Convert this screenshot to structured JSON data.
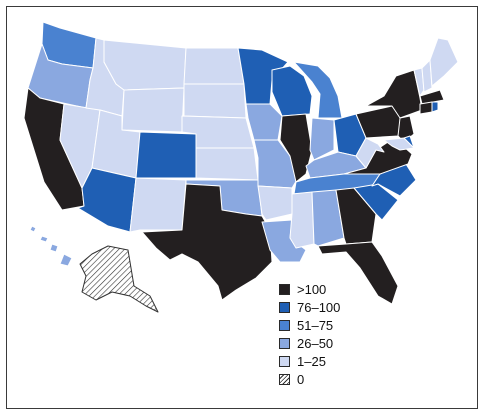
{
  "legend": {
    "items": [
      {
        "label": ">100",
        "color": "#231f20"
      },
      {
        "label": "76–100",
        "color": "#1f5fb4"
      },
      {
        "label": "51–75",
        "color": "#4a82d0"
      },
      {
        "label": "26–50",
        "color": "#8aa8e0"
      },
      {
        "label": "1–25",
        "color": "#cfd9f2"
      },
      {
        "label": "0",
        "color": "hatched"
      }
    ]
  },
  "map": {
    "border_color": "#ffffff",
    "ak_value": "0"
  }
}
